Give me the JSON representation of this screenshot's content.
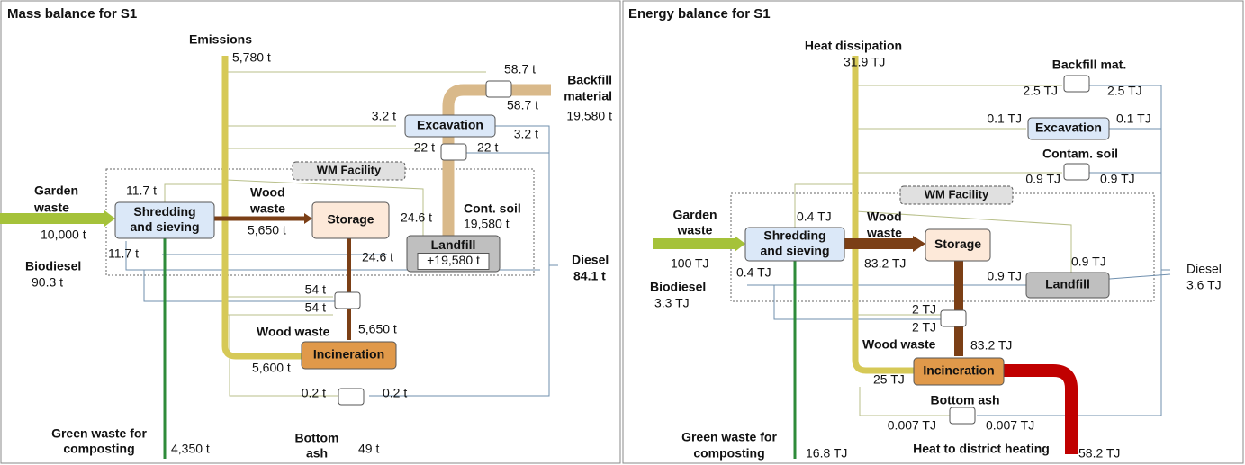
{
  "panels": [
    {
      "title": "Mass balance for S1",
      "nodes": [
        {
          "lines": [
            "Excavation"
          ]
        },
        {
          "lines": [
            "Shredding",
            "and sieving"
          ]
        },
        {
          "lines": [
            "Storage"
          ]
        },
        {
          "lines": [
            "Landfill",
            "+19,580 t"
          ]
        },
        {
          "lines": [
            "Incineration"
          ]
        },
        {
          "lines": [
            "WM Facility"
          ]
        }
      ],
      "labels": [
        "Emissions",
        "5,780 t",
        "58.7 t",
        "Backfill",
        "material",
        "19,580 t",
        "58.7 t",
        "3.2 t",
        "3.2 t",
        "22 t",
        "22 t",
        "11.7 t",
        "Garden",
        "waste",
        "10,000 t",
        "Wood",
        "waste",
        "5,650 t",
        "24.6 t",
        "Cont. soil",
        "19,580 t",
        "11.7 t",
        "24.6 t",
        "Biodiesel",
        "90.3 t",
        "Diesel",
        "84.1 t",
        "54 t",
        "54 t",
        "Wood waste",
        "5,650 t",
        "5,600 t",
        "0.2 t",
        "0.2 t",
        "Green waste for",
        "composting",
        "4,350 t",
        "Bottom",
        "ash",
        "49 t"
      ]
    },
    {
      "title": "Energy balance for S1",
      "nodes": [
        {
          "lines": [
            "Excavation"
          ]
        },
        {
          "lines": [
            "Shredding",
            "and sieving"
          ]
        },
        {
          "lines": [
            "Storage"
          ]
        },
        {
          "lines": [
            "Landfill"
          ]
        },
        {
          "lines": [
            "Incineration"
          ]
        },
        {
          "lines": [
            "WM Facility"
          ]
        }
      ],
      "labels": [
        "Heat dissipation",
        "31.9 TJ",
        "Backfill mat.",
        "2.5 TJ",
        "2.5 TJ",
        "0.1 TJ",
        "0.1 TJ",
        "Contam. soil",
        "0.9 TJ",
        "0.9 TJ",
        "0.4 TJ",
        "Wood",
        "waste",
        "Garden",
        "waste",
        "100 TJ",
        "83.2 TJ",
        "0.4 TJ",
        "0.9 TJ",
        "0.9 TJ",
        "Diesel",
        "3.6 TJ",
        "Biodiesel",
        "3.3 TJ",
        "2 TJ",
        "2 TJ",
        "Wood waste",
        "83.2 TJ",
        "25 TJ",
        "Bottom ash",
        "0.007 TJ",
        "0.007 TJ",
        "Green waste for",
        "composting",
        "16.8 TJ",
        "Heat to district heating",
        "58.2 TJ"
      ]
    }
  ]
}
